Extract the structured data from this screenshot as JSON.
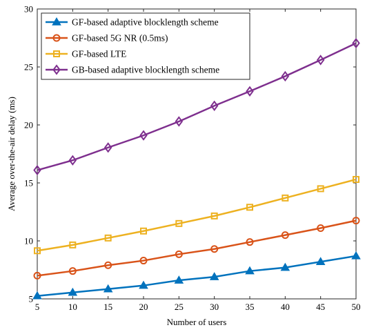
{
  "chart_data": {
    "type": "line",
    "title": "",
    "xlabel": "Number of users",
    "ylabel": "Average over-the-air delay (ms)",
    "xlim": [
      5,
      50
    ],
    "ylim": [
      5,
      30
    ],
    "x_ticks": [
      5,
      10,
      15,
      20,
      25,
      30,
      35,
      40,
      45,
      50
    ],
    "y_ticks": [
      5,
      10,
      15,
      20,
      25,
      30
    ],
    "grid": false,
    "legend_position": "top-left",
    "x": [
      5,
      10,
      15,
      20,
      25,
      30,
      35,
      40,
      45,
      50
    ],
    "series": [
      {
        "name": "GF-based adaptive blocklength scheme",
        "color": "#0072BD",
        "marker": "triangle",
        "values": [
          5.25,
          5.55,
          5.85,
          6.15,
          6.6,
          6.9,
          7.4,
          7.7,
          8.2,
          8.7
        ]
      },
      {
        "name": "GF-based 5G NR (0.5ms)",
        "color": "#D95319",
        "marker": "circle",
        "values": [
          7.0,
          7.4,
          7.9,
          8.3,
          8.85,
          9.3,
          9.9,
          10.5,
          11.1,
          11.75
        ]
      },
      {
        "name": "GF-based LTE",
        "color": "#EDB120",
        "marker": "square",
        "values": [
          9.15,
          9.65,
          10.25,
          10.85,
          11.5,
          12.15,
          12.9,
          13.7,
          14.5,
          15.3
        ]
      },
      {
        "name": "GB-based adaptive blocklength scheme",
        "color": "#7E2F8E",
        "marker": "diamond",
        "values": [
          16.1,
          16.95,
          18.05,
          19.1,
          20.3,
          21.65,
          22.9,
          24.2,
          25.6,
          27.05
        ]
      }
    ]
  }
}
